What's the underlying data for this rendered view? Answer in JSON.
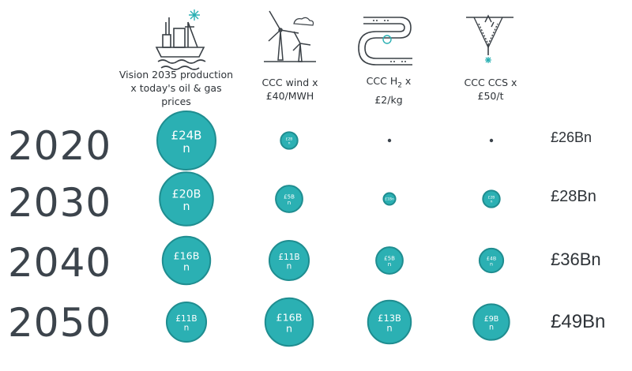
{
  "chart_data": {
    "type": "bubble",
    "columns": [
      {
        "key": "oilgas",
        "label_lines": [
          "Vision 2035 production",
          "x today's oil & gas",
          "prices"
        ]
      },
      {
        "key": "wind",
        "label_lines": [
          "CCC wind x",
          "£40/MWH"
        ]
      },
      {
        "key": "h2",
        "label_pre": "CCC H",
        "label_sub": "2",
        "label_post": " x",
        "label_line2": "£2/kg"
      },
      {
        "key": "ccs",
        "label_lines": [
          "CCC CCS x",
          "£50/t"
        ]
      }
    ],
    "rows": [
      {
        "year": "2020",
        "total": "£26Bn",
        "cells": [
          {
            "value": 24,
            "label": "£24B n"
          },
          {
            "value": 2,
            "label": "£2B n"
          },
          {
            "value": 0.05,
            "label": ""
          },
          {
            "value": 0.05,
            "label": ""
          }
        ]
      },
      {
        "year": "2030",
        "total": "£28Bn",
        "cells": [
          {
            "value": 20,
            "label": "£20B n"
          },
          {
            "value": 5,
            "label": "£5B n"
          },
          {
            "value": 1,
            "label": "£1Bn"
          },
          {
            "value": 2,
            "label": "£2B n"
          }
        ]
      },
      {
        "year": "2040",
        "total": "£36Bn",
        "cells": [
          {
            "value": 16,
            "label": "£16B n"
          },
          {
            "value": 11,
            "label": "£11B n"
          },
          {
            "value": 5,
            "label": "£5B n"
          },
          {
            "value": 4,
            "label": "£4B n"
          }
        ]
      },
      {
        "year": "2050",
        "total": "£49Bn",
        "cells": [
          {
            "value": 11,
            "label": "£11B n"
          },
          {
            "value": 16,
            "label": "£16B n"
          },
          {
            "value": 13,
            "label": "£13B n"
          },
          {
            "value": 9,
            "label": "£9B n"
          }
        ]
      }
    ],
    "colors": {
      "bubble_fill": "#2bb0b3",
      "bubble_stroke": "#1f8d90",
      "dot": "#3c444c"
    }
  },
  "icons": [
    "oil-rig-icon",
    "wind-turbine-icon",
    "hydrogen-pipeline-icon",
    "carbon-capture-icon"
  ]
}
